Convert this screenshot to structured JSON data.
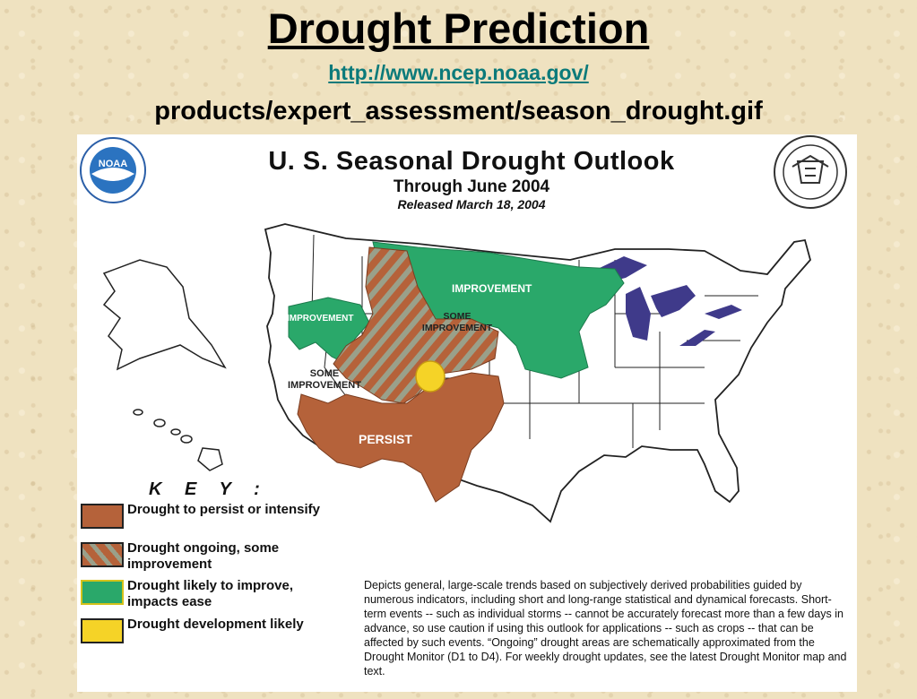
{
  "slide": {
    "title": "Drought Prediction",
    "link": "http://www.ncep.noaa.gov/",
    "path": "products/expert_assessment/season_drought.gif"
  },
  "outlook": {
    "title": "U. S. Seasonal Drought Outlook",
    "subtitle": "Through June 2004",
    "released": "Released March 18, 2004"
  },
  "logos": {
    "noaa_text": "NOAA",
    "seal_icon": "department-of-commerce-seal"
  },
  "region_labels": {
    "improvement_north": "IMPROVEMENT",
    "improvement_west": "IMPROVEMENT",
    "some_improvement_central_1": "SOME",
    "some_improvement_central_2": "IMPROVEMENT",
    "some_improvement_west_1": "SOME",
    "some_improvement_west_2": "IMPROVEMENT",
    "persist": "PERSIST"
  },
  "key": {
    "title": "K E Y :",
    "items": [
      {
        "label": "Drought to persist or intensify",
        "color": "#b5623a"
      },
      {
        "label": "Drought ongoing, some improvement",
        "color": "#b5623a",
        "hatch": "#9aa08a"
      },
      {
        "label": "Drought likely to improve, impacts ease",
        "color": "#2aa86a"
      },
      {
        "label": "Drought development likely",
        "color": "#f5d327"
      }
    ]
  },
  "disclaimer": "Depicts general, large-scale trends based on subjectively derived probabilities guided by numerous indicators, including short and long-range statistical and dynamical forecasts. Short-term events -- such as individual storms -- cannot be accurately forecast more than a few days in advance, so use caution if using this outlook for applications -- such as crops -- that can be affected by such events. “Ongoing” drought areas are schematically approximated from the Drought Monitor (D1 to D4). For weekly drought updates, see the latest Drought Monitor map and text.",
  "colors": {
    "persist": "#b5623a",
    "improve": "#2aa86a",
    "development": "#f5d327",
    "lakes": "#3f3a8a",
    "link": "#0b7a7a"
  }
}
